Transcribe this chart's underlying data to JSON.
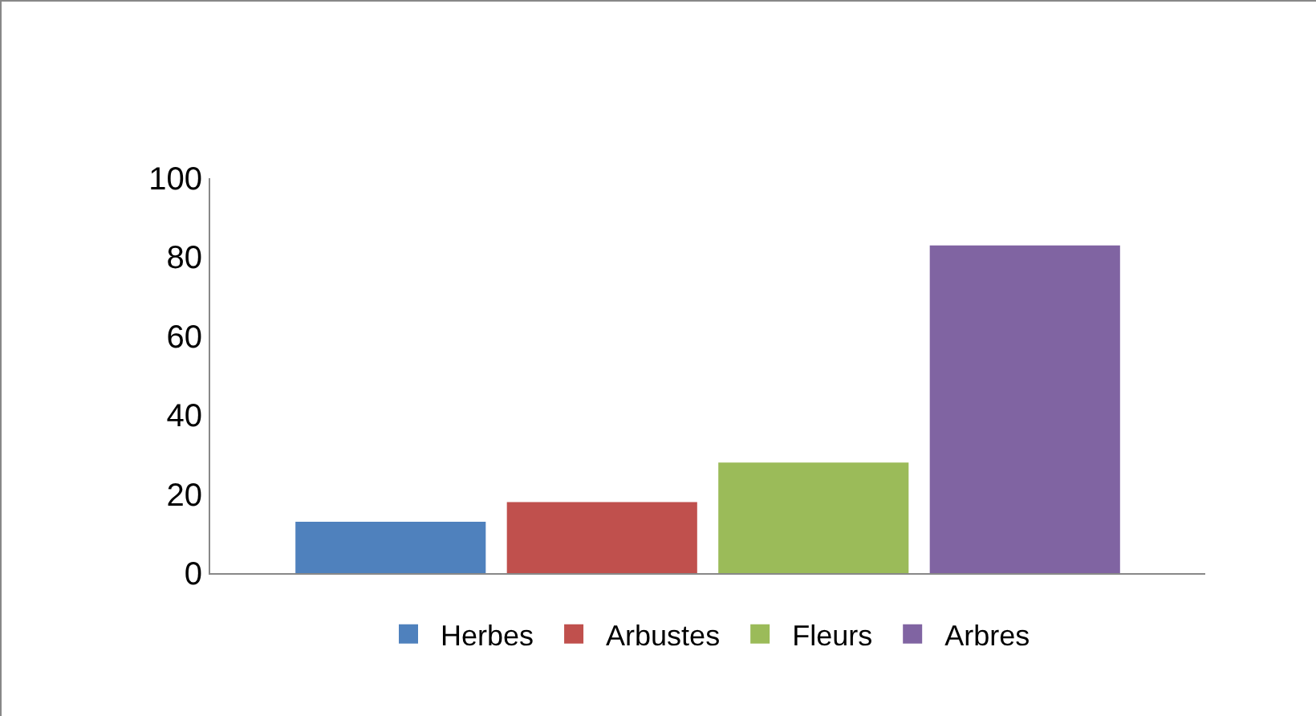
{
  "chart_data": {
    "type": "bar",
    "categories": [
      null
    ],
    "series": [
      {
        "name": "Herbes",
        "color": "#4f81bd",
        "values": [
          13
        ]
      },
      {
        "name": "Arbustes",
        "color": "#c0504d",
        "values": [
          18
        ]
      },
      {
        "name": "Fleurs",
        "color": "#9bbb59",
        "values": [
          28
        ]
      },
      {
        "name": "Arbres",
        "color": "#8064a2",
        "values": [
          83
        ]
      }
    ],
    "ylim": [
      0,
      100
    ],
    "yticks": [
      0,
      20,
      40,
      60,
      80,
      100
    ],
    "grid": false,
    "legend": "bottom",
    "tick_labels": "y"
  }
}
